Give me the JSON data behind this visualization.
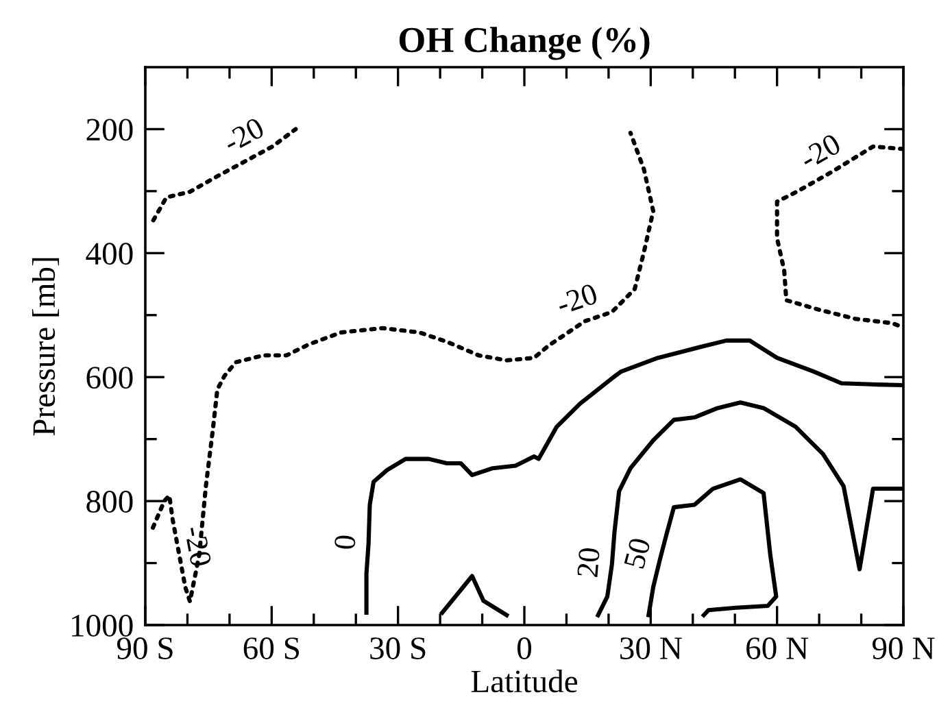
{
  "chart_data": {
    "type": "line",
    "title": "OH Change (%)",
    "xlabel": "Latitude",
    "ylabel": "Pressure [mb]",
    "xlim": [
      -90,
      90
    ],
    "ylim": [
      1000,
      100
    ],
    "xticks": [
      {
        "value": -90,
        "label": "90 S"
      },
      {
        "value": -80,
        "label": null
      },
      {
        "value": -70,
        "label": null
      },
      {
        "value": -60,
        "label": "60 S"
      },
      {
        "value": -50,
        "label": null
      },
      {
        "value": -40,
        "label": null
      },
      {
        "value": -30,
        "label": "30 S"
      },
      {
        "value": -20,
        "label": null
      },
      {
        "value": -10,
        "label": null
      },
      0,
      {
        "value": 10,
        "label": null
      },
      {
        "value": 20,
        "label": null
      },
      {
        "value": 30,
        "label": "30 N"
      },
      {
        "value": 40,
        "label": null
      },
      {
        "value": 50,
        "label": null
      },
      {
        "value": 60,
        "label": "60 N"
      },
      {
        "value": 70,
        "label": null
      },
      {
        "value": 80,
        "label": null
      },
      {
        "value": 90,
        "label": "90 N"
      }
    ],
    "yticks": [
      200,
      {
        "value": 300,
        "label": null
      },
      400,
      {
        "value": 500,
        "label": null
      },
      600,
      {
        "value": 700,
        "label": null
      },
      800,
      {
        "value": 900,
        "label": null
      },
      1000
    ],
    "grid": false,
    "marker": "none",
    "series": [
      {
        "color": "#000000",
        "line_style": "dotted",
        "x": [
          -88.1,
          -85,
          -79.4,
          -72.9,
          -59.8,
          -54.3
        ],
        "values": [
          347,
          310,
          301,
          276,
          228,
          200
        ]
      },
      {
        "color": "#000000",
        "line_style": "dotted",
        "x": [
          -88.2,
          -85.5,
          -84.3,
          -83.5,
          -80.5,
          -79.4,
          -77.2,
          -75.6,
          -74,
          -72.9,
          -71.2,
          -68.5,
          -62,
          -56.5,
          -51.1,
          -43.5,
          -33.7,
          -24.9,
          -18.4,
          -10.8,
          -4.2,
          2.3,
          5.6,
          14.3,
          20.8,
          26.2,
          28.4,
          30.6,
          28.4,
          25.2
        ],
        "values": [
          843,
          800,
          791,
          830,
          939,
          962,
          887,
          775,
          687,
          620,
          598,
          576,
          565,
          565,
          547,
          528,
          521,
          528,
          543,
          565,
          573,
          569,
          550,
          510,
          495,
          458,
          398,
          332,
          265,
          206
        ]
      },
      {
        "color": "#000000",
        "line_style": "dotted",
        "x": [
          90,
          82.8,
          73,
          64.4,
          60,
          60,
          61.7,
          62.2,
          69.8,
          78.6,
          87.3,
          90
        ],
        "values": [
          232,
          228,
          269,
          302,
          317,
          376,
          428,
          476,
          491,
          506,
          513,
          520
        ]
      },
      {
        "color": "#000000",
        "line_style": "solid",
        "x": [
          -37.5,
          -37.5,
          -37,
          -36.7,
          -35.8,
          -32.6,
          -28.2,
          -22.7,
          -18.4,
          -15.1,
          -12.4,
          -7.5,
          -2.1,
          2.3,
          3.4,
          7.7,
          13.2,
          20.8,
          23,
          31.7,
          42.6,
          48,
          53.5,
          60,
          68.7,
          75.3,
          84,
          90
        ],
        "values": [
          980,
          917,
          869,
          806,
          769,
          750,
          732,
          732,
          739,
          739,
          758,
          747,
          743,
          728,
          732,
          680,
          643,
          602,
          591,
          569,
          550,
          541,
          541,
          569,
          591,
          610,
          612,
          613
        ]
      },
      {
        "color": "#000000",
        "line_style": "solid",
        "x": [
          -19.5,
          -12.4,
          -9.7,
          -4.2
        ],
        "values": [
          980,
          921,
          961,
          984
        ]
      },
      {
        "color": "#000000",
        "line_style": "solid",
        "x": [
          17.5,
          19.7,
          20.8,
          21.4,
          22.5,
          25.2,
          30.6,
          35.5,
          40.4,
          45.9,
          51.3,
          56.8,
          64.4,
          70.9,
          75.8,
          79.6,
          82.8,
          90
        ],
        "values": [
          984,
          954,
          902,
          850,
          784,
          747,
          702,
          669,
          665,
          650,
          641,
          650,
          680,
          724,
          776,
          910,
          780,
          780
        ]
      },
      {
        "color": "#000000",
        "line_style": "solid",
        "x": [
          29.5,
          30.6,
          32.2,
          33.9,
          35.5,
          40.4,
          44.8,
          51.3,
          56.8,
          58.4,
          59.8,
          57.8,
          50.2,
          43.7,
          42.6
        ],
        "values": [
          984,
          939,
          894,
          850,
          810,
          806,
          780,
          765,
          787,
          887,
          954,
          969,
          972,
          976,
          984
        ]
      }
    ],
    "annotations": [
      {
        "text": "-20",
        "x": -64,
        "y": 243
      },
      {
        "text": "-20",
        "x": -83,
        "y": 880
      },
      {
        "text": "-20",
        "x": 14.3,
        "y": 510
      },
      {
        "text": "-20",
        "x": 73,
        "y": 269
      },
      {
        "text": "0",
        "x": -37,
        "y": 869
      },
      {
        "text": "20",
        "x": 20.8,
        "y": 902
      },
      {
        "text": "50",
        "x": 32.2,
        "y": 894
      }
    ]
  }
}
